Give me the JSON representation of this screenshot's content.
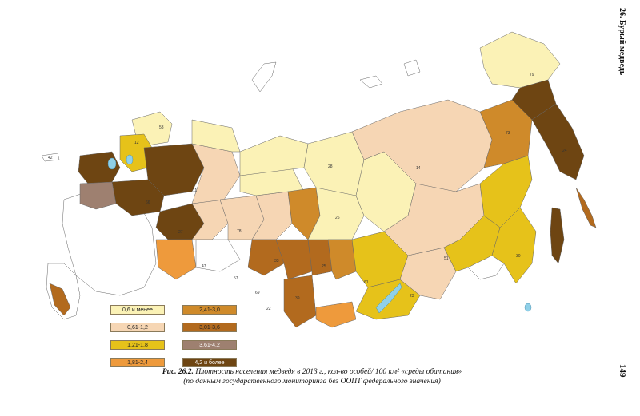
{
  "running_head": "26. Бурый медведь",
  "page_number": "149",
  "caption": {
    "figure_label": "Рис. 26.2.",
    "line1": "Плотность населения медведя в 2013 г., кол-во особей/ 100 км² «среды обитания»",
    "line2": "(по данным государственного мониторинга без ООПТ федерального значения)"
  },
  "legend": [
    {
      "label": "0,6 и менее",
      "color": "#fbf2b6"
    },
    {
      "label": "0,61-1,2",
      "color": "#f6d6b4"
    },
    {
      "label": "1,21-1,8",
      "color": "#e6c21a"
    },
    {
      "label": "1,81-2,4",
      "color": "#ee9a3c"
    },
    {
      "label": "2,41-3,0",
      "color": "#cf8a2a"
    },
    {
      "label": "3,01-3,6",
      "color": "#b26a1e"
    },
    {
      "label": "3,61-4,2",
      "color": "#9e8070"
    },
    {
      "label": "4,2 и более",
      "color": "#6e4512"
    }
  ],
  "colors": {
    "lake": "#8fd0e8",
    "outline": "#555555",
    "no_data": "#ffffff"
  },
  "region_numbers": [
    "79",
    "24",
    "14",
    "28",
    "11",
    "51",
    "30",
    "61",
    "23",
    "26",
    "73",
    "53",
    "12",
    "42",
    "66",
    "57",
    "47",
    "22",
    "69",
    "33",
    "25",
    "39",
    "27",
    "78"
  ]
}
